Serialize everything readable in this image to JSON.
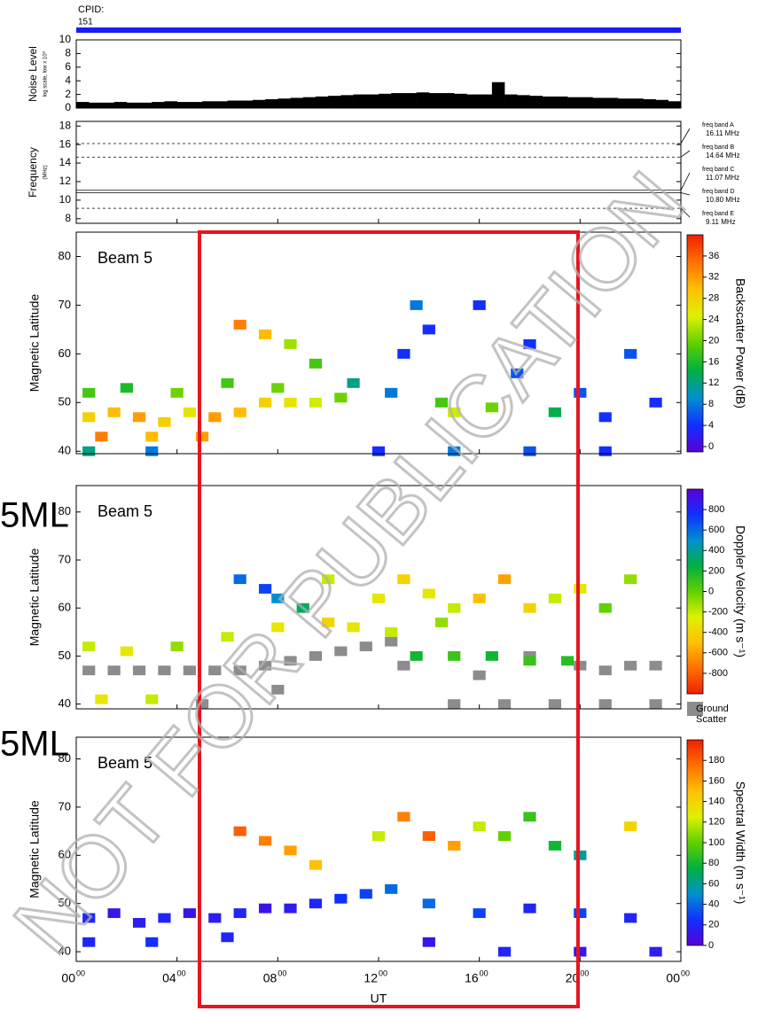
{
  "header": {
    "label": "CPID:",
    "cpid": "151",
    "bar_color": "#1a1aff"
  },
  "overlays": {
    "watermark": "NOT FOR PUBLICATION",
    "side_labels": [
      "5ML",
      "5ML"
    ],
    "highlight_color": "#e8141e"
  },
  "chart_data": [
    {
      "type": "area",
      "ylabel": "Noise Level",
      "ylabel_sub": "log scale, low x 10^",
      "color": "#000000",
      "xlim": [
        0,
        24
      ],
      "ylim": [
        0,
        10
      ],
      "yticks": [
        0,
        2,
        4,
        6,
        8,
        10
      ],
      "x": [
        0,
        0.5,
        1,
        1.5,
        2,
        2.5,
        3,
        3.5,
        4,
        4.5,
        5,
        5.5,
        6,
        6.5,
        7,
        7.5,
        8,
        8.5,
        9,
        9.5,
        10,
        10.5,
        11,
        11.5,
        12,
        12.5,
        13,
        13.5,
        14,
        14.5,
        15,
        15.5,
        16,
        16.5,
        17,
        17.5,
        18,
        18.5,
        19,
        19.5,
        20,
        20.5,
        21,
        21.5,
        22,
        22.5,
        23,
        23.5
      ],
      "values": [
        0.9,
        0.8,
        0.8,
        0.9,
        0.8,
        0.8,
        0.9,
        1.0,
        0.9,
        0.9,
        1.0,
        1.0,
        1.1,
        1.1,
        1.2,
        1.3,
        1.4,
        1.5,
        1.6,
        1.7,
        1.8,
        1.9,
        2.0,
        2.0,
        2.1,
        2.2,
        2.2,
        2.3,
        2.2,
        2.2,
        2.1,
        2.0,
        2.0,
        3.8,
        2.0,
        1.9,
        1.8,
        1.7,
        1.7,
        1.6,
        1.6,
        1.5,
        1.5,
        1.4,
        1.4,
        1.3,
        1.2,
        1.0
      ]
    },
    {
      "type": "lines",
      "ylabel": "Frequency",
      "ylabel_sub": "(MHz)",
      "xlim": [
        0,
        24
      ],
      "ylim": [
        7.5,
        18.5
      ],
      "yticks": [
        8,
        10,
        12,
        14,
        16,
        18
      ],
      "bands": [
        {
          "name": "freq band A",
          "value": 16.11,
          "label": "16.11 MHz"
        },
        {
          "name": "freq band B",
          "value": 14.64,
          "label": "14.64 MHz"
        },
        {
          "name": "freq band C",
          "value": 11.07,
          "label": "11.07 MHz"
        },
        {
          "name": "freq band D",
          "value": 10.8,
          "label": "10.80 MHz"
        },
        {
          "name": "freq band E",
          "value": 9.11,
          "label": "9.11 MHz"
        }
      ]
    },
    {
      "type": "heatmap",
      "annotation": "Beam 5",
      "ylabel": "Magnetic Latitude",
      "xlim": [
        0,
        24
      ],
      "ylim": [
        39.5,
        85
      ],
      "yticks": [
        40,
        50,
        60,
        70,
        80
      ],
      "colorbar_label": "Backscatter Power (dB)",
      "clim": [
        -1,
        40
      ],
      "cticks": [
        0,
        4,
        8,
        12,
        16,
        20,
        24,
        28,
        32,
        36
      ],
      "colormap": [
        "#5a00d8",
        "#1030ff",
        "#0090d0",
        "#00b040",
        "#60d000",
        "#e0f000",
        "#ffc000",
        "#ff7000",
        "#f02000"
      ],
      "x": [
        0.5,
        1.5,
        2.5,
        3.5,
        4.5,
        5.5,
        6.5,
        7.5,
        8.5,
        9.5,
        10.5,
        0.5,
        2,
        4,
        6,
        8,
        1,
        3,
        5,
        0.5,
        3,
        6.5,
        7.5,
        8.5,
        9.5,
        11,
        12.5,
        13,
        14,
        14.5,
        15,
        16.5,
        17.5,
        18,
        19,
        20,
        21,
        22,
        23,
        12,
        15,
        18,
        21,
        13.5,
        16
      ],
      "y": [
        47,
        48,
        47,
        46,
        48,
        47,
        48,
        50,
        50,
        50,
        51,
        52,
        53,
        52,
        54,
        53,
        43,
        43,
        43,
        40,
        40,
        66,
        64,
        62,
        58,
        54,
        52,
        60,
        65,
        50,
        48,
        49,
        56,
        62,
        48,
        52,
        47,
        60,
        50,
        40,
        40,
        40,
        40,
        70,
        70
      ],
      "values": [
        28,
        30,
        32,
        28,
        26,
        32,
        30,
        28,
        26,
        24,
        20,
        18,
        16,
        20,
        18,
        20,
        34,
        30,
        32,
        12,
        8,
        34,
        30,
        22,
        18,
        12,
        8,
        4,
        4,
        18,
        24,
        20,
        6,
        4,
        14,
        6,
        4,
        6,
        4,
        4,
        8,
        6,
        4,
        8,
        4
      ]
    },
    {
      "type": "heatmap",
      "annotation": "Beam 5",
      "ylabel": "Magnetic Latitude",
      "xlim": [
        0,
        24
      ],
      "ylim": [
        39,
        85.5
      ],
      "yticks": [
        40,
        50,
        60,
        70,
        80
      ],
      "colorbar_label": "Doppler Velocity (m s⁻¹)",
      "clim": [
        -1000,
        1000
      ],
      "cticks": [
        -800,
        -600,
        -400,
        -200,
        0,
        200,
        400,
        600,
        800
      ],
      "colormap": [
        "#f02000",
        "#ff7000",
        "#ffc000",
        "#e0f000",
        "#60d000",
        "#00b040",
        "#0090d0",
        "#1030ff",
        "#5a00d8"
      ],
      "x": [
        6.5,
        7.5,
        8,
        9,
        10,
        12,
        13,
        14,
        15,
        16,
        17,
        18,
        19,
        20,
        21,
        22,
        13.5,
        15,
        16.5,
        18,
        19.5,
        0.5,
        2,
        4,
        6,
        8,
        10,
        1,
        3,
        11,
        12.5,
        14.5
      ],
      "y": [
        66,
        64,
        62,
        60,
        66,
        62,
        66,
        63,
        60,
        62,
        66,
        60,
        62,
        64,
        60,
        66,
        50,
        50,
        50,
        49,
        49,
        52,
        51,
        52,
        54,
        56,
        57,
        41,
        41,
        56,
        55,
        57
      ],
      "values": [
        600,
        700,
        500,
        300,
        -200,
        -300,
        -400,
        -300,
        -200,
        -500,
        -600,
        -400,
        -200,
        -300,
        0,
        -100,
        200,
        100,
        200,
        100,
        150,
        -200,
        -300,
        -100,
        -200,
        -300,
        -400,
        -300,
        -200,
        -300,
        -200,
        -100
      ],
      "ground_scatter": {
        "label_lines": [
          "Ground",
          "Scatter"
        ],
        "color": "#8c8c8c",
        "x": [
          0.5,
          1.5,
          2.5,
          3.5,
          4.5,
          5.5,
          6.5,
          7.5,
          8.5,
          9.5,
          10.5,
          11.5,
          12.5,
          13,
          16,
          18,
          20,
          21,
          22,
          23,
          15,
          17,
          19,
          21,
          23,
          5,
          8
        ],
        "y": [
          47,
          47,
          47,
          47,
          47,
          47,
          47,
          48,
          49,
          50,
          51,
          52,
          53,
          48,
          46,
          50,
          48,
          47,
          48,
          48,
          40,
          40,
          40,
          40,
          40,
          40,
          43
        ]
      }
    },
    {
      "type": "heatmap",
      "annotation": "Beam 5",
      "ylabel": "Magnetic Latitude",
      "xlim": [
        0,
        24
      ],
      "ylim": [
        38,
        84.5
      ],
      "yticks": [
        40,
        50,
        60,
        70,
        80
      ],
      "colorbar_label": "Spectral Width (m s⁻¹)",
      "clim": [
        0,
        200
      ],
      "cticks": [
        0,
        20,
        40,
        60,
        80,
        100,
        120,
        140,
        160,
        180
      ],
      "colormap": [
        "#5a00d8",
        "#1030ff",
        "#0090d0",
        "#00b040",
        "#60d000",
        "#e0f000",
        "#ffc000",
        "#ff7000",
        "#f02000"
      ],
      "xlabel": "UT",
      "xticks": [
        {
          "value": 0,
          "label": "00",
          "sup": "00"
        },
        {
          "value": 4,
          "label": "04",
          "sup": "00"
        },
        {
          "value": 8,
          "label": "08",
          "sup": "00"
        },
        {
          "value": 12,
          "label": "12",
          "sup": "00"
        },
        {
          "value": 16,
          "label": "16",
          "sup": "00"
        },
        {
          "value": 20,
          "label": "20",
          "sup": "00"
        },
        {
          "value": 24,
          "label": "00",
          "sup": "00"
        }
      ],
      "x": [
        0.5,
        1.5,
        2.5,
        3.5,
        4.5,
        5.5,
        6.5,
        7.5,
        8.5,
        9.5,
        10.5,
        11.5,
        12.5,
        0.5,
        3,
        6,
        6.5,
        7.5,
        8.5,
        9.5,
        12,
        13,
        14,
        15,
        16,
        17,
        18,
        19,
        20,
        22,
        14,
        16,
        18,
        20,
        22,
        14,
        17,
        20,
        23
      ],
      "y": [
        47,
        48,
        46,
        47,
        48,
        47,
        48,
        49,
        49,
        50,
        51,
        52,
        53,
        42,
        42,
        43,
        65,
        63,
        61,
        58,
        64,
        68,
        64,
        62,
        66,
        64,
        68,
        62,
        60,
        66,
        50,
        48,
        49,
        48,
        47,
        42,
        40,
        40,
        40
      ],
      "values": [
        20,
        10,
        15,
        20,
        10,
        15,
        20,
        10,
        15,
        20,
        25,
        30,
        40,
        20,
        25,
        20,
        180,
        170,
        160,
        150,
        120,
        170,
        180,
        160,
        120,
        100,
        90,
        80,
        60,
        140,
        40,
        30,
        20,
        30,
        20,
        10,
        20,
        10,
        15
      ]
    }
  ]
}
